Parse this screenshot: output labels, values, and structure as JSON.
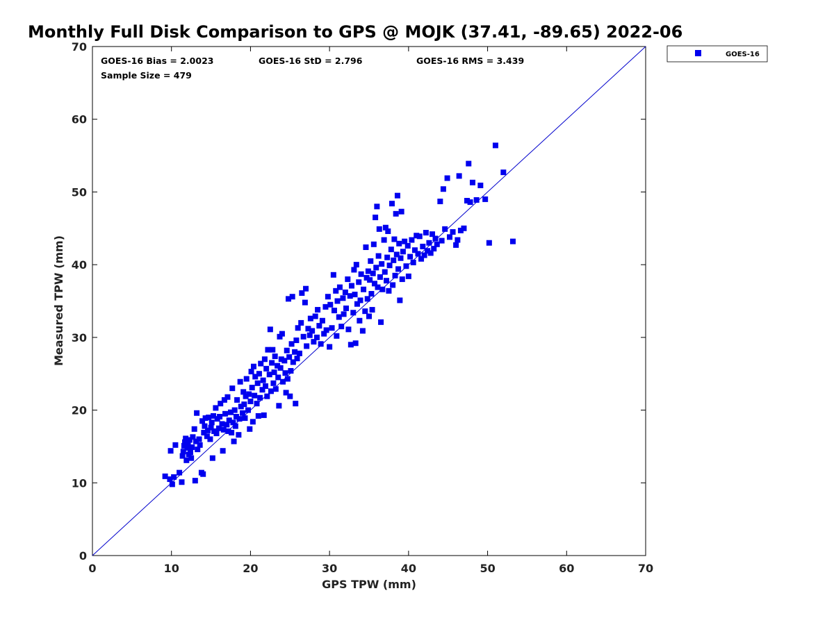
{
  "chart_data": {
    "type": "scatter",
    "title": "Monthly Full Disk Comparison to GPS @ MOJK (37.41, -89.65) 2022-06",
    "xlabel": "GPS TPW (mm)",
    "ylabel": "Measured TPW (mm)",
    "xlim": [
      0,
      70
    ],
    "ylim": [
      0,
      70
    ],
    "xticks": [
      "0",
      "10",
      "20",
      "30",
      "40",
      "50",
      "60",
      "70"
    ],
    "yticks": [
      "0",
      "10",
      "20",
      "30",
      "40",
      "50",
      "60",
      "70"
    ],
    "grid": false,
    "legend_placement": "outside-top-right",
    "reference_line": {
      "from": [
        0,
        0
      ],
      "to": [
        70,
        70
      ],
      "color": "#0000cc"
    },
    "stats": {
      "bias": "GOES-16 Bias = 2.0023",
      "std": "GOES-16 StD = 2.796",
      "rms": "GOES-16 RMS = 3.439",
      "sample_size": "Sample Size = 479"
    },
    "series": [
      {
        "name": "GOES-16",
        "color": "#0000ee",
        "points": [
          [
            9.2,
            10.9
          ],
          [
            9.8,
            10.5
          ],
          [
            10.1,
            9.8
          ],
          [
            10.3,
            10.8
          ],
          [
            9.9,
            14.4
          ],
          [
            10.5,
            15.2
          ],
          [
            11.0,
            11.4
          ],
          [
            11.3,
            10.1
          ],
          [
            11.4,
            13.7
          ],
          [
            11.5,
            14.3
          ],
          [
            11.6,
            15.1
          ],
          [
            11.7,
            15.6
          ],
          [
            11.8,
            16.1
          ],
          [
            11.9,
            13.1
          ],
          [
            12.0,
            14.8
          ],
          [
            12.1,
            15.4
          ],
          [
            12.2,
            13.9
          ],
          [
            12.3,
            15.9
          ],
          [
            12.4,
            14.2
          ],
          [
            12.5,
            13.4
          ],
          [
            12.6,
            14.9
          ],
          [
            12.7,
            16.3
          ],
          [
            12.9,
            17.4
          ],
          [
            13.0,
            10.3
          ],
          [
            13.1,
            15.7
          ],
          [
            13.2,
            19.6
          ],
          [
            13.3,
            14.6
          ],
          [
            13.5,
            16.0
          ],
          [
            13.6,
            15.2
          ],
          [
            13.8,
            11.4
          ],
          [
            13.9,
            18.5
          ],
          [
            14.0,
            11.2
          ],
          [
            14.1,
            16.9
          ],
          [
            14.2,
            17.8
          ],
          [
            14.3,
            18.9
          ],
          [
            14.5,
            16.4
          ],
          [
            14.6,
            17.2
          ],
          [
            14.7,
            19.0
          ],
          [
            14.9,
            16.0
          ],
          [
            15.0,
            17.6
          ],
          [
            15.1,
            18.3
          ],
          [
            15.2,
            13.4
          ],
          [
            15.3,
            19.2
          ],
          [
            15.4,
            17.1
          ],
          [
            15.6,
            20.3
          ],
          [
            15.7,
            16.8
          ],
          [
            15.8,
            18.8
          ],
          [
            16.0,
            17.5
          ],
          [
            16.1,
            19.1
          ],
          [
            16.2,
            20.9
          ],
          [
            16.4,
            18.1
          ],
          [
            16.5,
            14.4
          ],
          [
            16.6,
            17.3
          ],
          [
            16.7,
            21.4
          ],
          [
            16.8,
            19.5
          ],
          [
            17.0,
            18.0
          ],
          [
            17.1,
            21.8
          ],
          [
            17.2,
            17.1
          ],
          [
            17.3,
            18.6
          ],
          [
            17.5,
            19.7
          ],
          [
            17.6,
            16.9
          ],
          [
            17.7,
            23.0
          ],
          [
            17.8,
            18.3
          ],
          [
            17.9,
            15.7
          ],
          [
            18.0,
            20.0
          ],
          [
            18.1,
            17.8
          ],
          [
            18.2,
            19.1
          ],
          [
            18.3,
            21.4
          ],
          [
            18.5,
            16.6
          ],
          [
            18.6,
            18.8
          ],
          [
            18.7,
            23.9
          ],
          [
            18.8,
            20.5
          ],
          [
            19.0,
            19.6
          ],
          [
            19.1,
            22.5
          ],
          [
            19.2,
            20.8
          ],
          [
            19.3,
            18.9
          ],
          [
            19.4,
            21.9
          ],
          [
            19.5,
            24.3
          ],
          [
            19.7,
            20.0
          ],
          [
            19.8,
            22.2
          ],
          [
            19.9,
            17.4
          ],
          [
            20.0,
            21.2
          ],
          [
            20.1,
            25.3
          ],
          [
            20.2,
            23.1
          ],
          [
            20.3,
            18.4
          ],
          [
            20.4,
            26.0
          ],
          [
            20.5,
            22.0
          ],
          [
            20.6,
            24.6
          ],
          [
            20.8,
            20.9
          ],
          [
            20.9,
            23.7
          ],
          [
            21.0,
            19.2
          ],
          [
            21.1,
            25.0
          ],
          [
            21.2,
            21.7
          ],
          [
            21.3,
            26.4
          ],
          [
            21.5,
            22.8
          ],
          [
            21.6,
            24.1
          ],
          [
            21.7,
            19.3
          ],
          [
            21.8,
            27.0
          ],
          [
            21.9,
            23.3
          ],
          [
            22.0,
            25.7
          ],
          [
            22.1,
            21.9
          ],
          [
            22.2,
            28.3
          ],
          [
            22.4,
            24.9
          ],
          [
            22.5,
            31.1
          ],
          [
            22.6,
            22.6
          ],
          [
            22.7,
            26.5
          ],
          [
            22.8,
            28.3
          ],
          [
            22.9,
            23.7
          ],
          [
            23.0,
            25.2
          ],
          [
            23.1,
            27.4
          ],
          [
            23.2,
            22.9
          ],
          [
            23.4,
            26.1
          ],
          [
            23.5,
            24.5
          ],
          [
            23.6,
            20.6
          ],
          [
            23.7,
            30.1
          ],
          [
            23.8,
            25.8
          ],
          [
            23.9,
            27.0
          ],
          [
            24.0,
            30.5
          ],
          [
            24.1,
            23.9
          ],
          [
            24.3,
            26.8
          ],
          [
            24.4,
            25.1
          ],
          [
            24.5,
            22.4
          ],
          [
            24.6,
            28.2
          ],
          [
            24.7,
            24.3
          ],
          [
            24.8,
            35.3
          ],
          [
            24.9,
            27.3
          ],
          [
            25.0,
            21.9
          ],
          [
            25.1,
            25.4
          ],
          [
            25.2,
            29.1
          ],
          [
            25.3,
            35.6
          ],
          [
            25.4,
            26.6
          ],
          [
            25.6,
            28.0
          ],
          [
            25.7,
            20.9
          ],
          [
            25.8,
            29.6
          ],
          [
            25.9,
            27.1
          ],
          [
            26.0,
            31.3
          ],
          [
            26.2,
            27.8
          ],
          [
            26.4,
            32.0
          ],
          [
            26.5,
            36.1
          ],
          [
            26.7,
            30.1
          ],
          [
            26.9,
            34.8
          ],
          [
            27.0,
            36.7
          ],
          [
            27.1,
            28.8
          ],
          [
            27.3,
            31.2
          ],
          [
            27.5,
            30.3
          ],
          [
            27.6,
            32.6
          ],
          [
            27.8,
            30.9
          ],
          [
            28.0,
            29.4
          ],
          [
            28.2,
            32.9
          ],
          [
            28.4,
            30.0
          ],
          [
            28.5,
            33.8
          ],
          [
            28.7,
            31.6
          ],
          [
            28.9,
            29.1
          ],
          [
            29.1,
            32.3
          ],
          [
            29.3,
            30.5
          ],
          [
            29.5,
            34.2
          ],
          [
            29.6,
            31.0
          ],
          [
            29.8,
            35.6
          ],
          [
            30.0,
            28.7
          ],
          [
            30.1,
            34.5
          ],
          [
            30.3,
            31.3
          ],
          [
            30.5,
            38.6
          ],
          [
            30.6,
            33.7
          ],
          [
            30.8,
            36.4
          ],
          [
            30.9,
            30.2
          ],
          [
            31.0,
            35.0
          ],
          [
            31.2,
            32.8
          ],
          [
            31.3,
            36.9
          ],
          [
            31.5,
            31.5
          ],
          [
            31.7,
            35.4
          ],
          [
            31.8,
            33.2
          ],
          [
            32.0,
            36.2
          ],
          [
            32.1,
            34.0
          ],
          [
            32.3,
            38.0
          ],
          [
            32.4,
            31.1
          ],
          [
            32.6,
            35.7
          ],
          [
            32.7,
            29.0
          ],
          [
            32.8,
            37.1
          ],
          [
            33.0,
            33.4
          ],
          [
            33.1,
            39.3
          ],
          [
            33.2,
            35.9
          ],
          [
            33.3,
            29.2
          ],
          [
            33.4,
            40.0
          ],
          [
            33.5,
            34.6
          ],
          [
            33.7,
            37.6
          ],
          [
            33.8,
            32.3
          ],
          [
            33.9,
            35.1
          ],
          [
            34.0,
            38.7
          ],
          [
            34.2,
            30.9
          ],
          [
            34.3,
            36.6
          ],
          [
            34.5,
            33.6
          ],
          [
            34.6,
            42.4
          ],
          [
            34.7,
            38.2
          ],
          [
            34.8,
            35.3
          ],
          [
            34.9,
            39.1
          ],
          [
            35.0,
            32.9
          ],
          [
            35.1,
            37.9
          ],
          [
            35.2,
            40.5
          ],
          [
            35.3,
            36.0
          ],
          [
            35.4,
            33.8
          ],
          [
            35.5,
            38.8
          ],
          [
            35.6,
            42.8
          ],
          [
            35.7,
            37.4
          ],
          [
            35.8,
            46.5
          ],
          [
            35.9,
            39.6
          ],
          [
            36.0,
            48.0
          ],
          [
            36.1,
            36.9
          ],
          [
            36.2,
            41.2
          ],
          [
            36.3,
            44.9
          ],
          [
            36.4,
            38.3
          ],
          [
            36.5,
            32.1
          ],
          [
            36.6,
            40.1
          ],
          [
            36.7,
            36.6
          ],
          [
            36.9,
            43.4
          ],
          [
            37.0,
            39.0
          ],
          [
            37.1,
            45.1
          ],
          [
            37.2,
            37.8
          ],
          [
            37.3,
            41.0
          ],
          [
            37.4,
            44.6
          ],
          [
            37.5,
            36.4
          ],
          [
            37.6,
            39.9
          ],
          [
            37.8,
            42.1
          ],
          [
            37.9,
            48.4
          ],
          [
            38.0,
            37.2
          ],
          [
            38.1,
            40.6
          ],
          [
            38.2,
            43.5
          ],
          [
            38.3,
            38.5
          ],
          [
            38.4,
            47.0
          ],
          [
            38.5,
            41.4
          ],
          [
            38.6,
            49.5
          ],
          [
            38.7,
            39.4
          ],
          [
            38.8,
            42.9
          ],
          [
            38.9,
            35.1
          ],
          [
            39.0,
            40.9
          ],
          [
            39.1,
            47.3
          ],
          [
            39.2,
            38.0
          ],
          [
            39.3,
            41.8
          ],
          [
            39.5,
            43.2
          ],
          [
            39.7,
            39.8
          ],
          [
            39.9,
            42.6
          ],
          [
            40.0,
            38.4
          ],
          [
            40.2,
            41.1
          ],
          [
            40.4,
            43.4
          ],
          [
            40.6,
            40.3
          ],
          [
            40.8,
            42.0
          ],
          [
            41.0,
            44.0
          ],
          [
            41.2,
            41.5
          ],
          [
            41.4,
            43.9
          ],
          [
            41.6,
            40.8
          ],
          [
            41.8,
            42.5
          ],
          [
            42.0,
            41.3
          ],
          [
            42.2,
            44.4
          ],
          [
            42.4,
            41.9
          ],
          [
            42.6,
            43.0
          ],
          [
            42.8,
            41.6
          ],
          [
            43.0,
            44.2
          ],
          [
            43.2,
            42.2
          ],
          [
            43.4,
            43.6
          ],
          [
            43.6,
            42.8
          ],
          [
            44.0,
            48.7
          ],
          [
            44.2,
            43.3
          ],
          [
            44.4,
            50.4
          ],
          [
            44.6,
            44.9
          ],
          [
            44.9,
            51.9
          ],
          [
            45.2,
            43.8
          ],
          [
            45.6,
            44.5
          ],
          [
            46.0,
            42.7
          ],
          [
            46.2,
            43.4
          ],
          [
            46.4,
            52.2
          ],
          [
            46.6,
            44.7
          ],
          [
            47.0,
            45.0
          ],
          [
            47.4,
            48.8
          ],
          [
            47.6,
            53.9
          ],
          [
            47.8,
            48.6
          ],
          [
            48.1,
            51.3
          ],
          [
            48.6,
            48.9
          ],
          [
            49.1,
            50.9
          ],
          [
            49.7,
            49.0
          ],
          [
            50.2,
            43.0
          ],
          [
            51.0,
            56.4
          ],
          [
            52.0,
            52.7
          ],
          [
            53.2,
            43.2
          ]
        ]
      }
    ]
  }
}
